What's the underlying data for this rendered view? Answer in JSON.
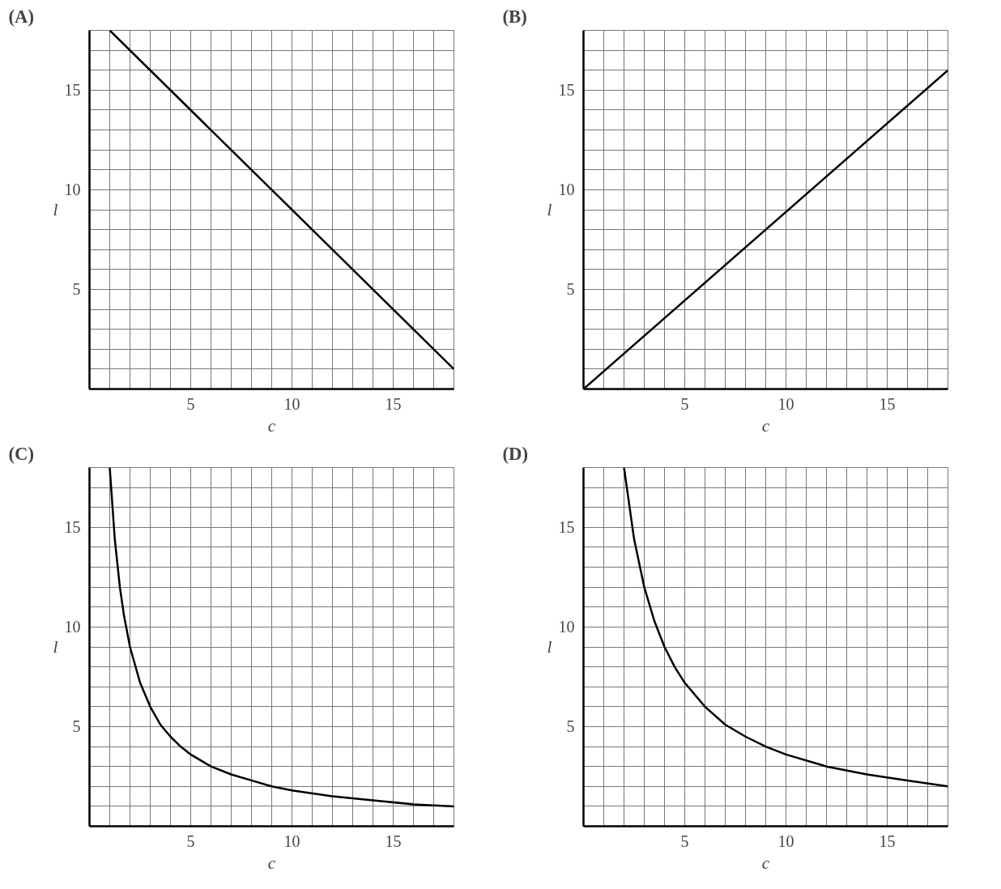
{
  "chart_data": [
    {
      "type": "line",
      "title": "(A)",
      "xlabel": "c",
      "ylabel": "l",
      "color": "#000000",
      "grid": true,
      "x": [
        1,
        18
      ],
      "values": [
        18,
        1
      ],
      "xlim": [
        0,
        18
      ],
      "ylim": [
        0,
        18
      ],
      "xticks": [
        {
          "value": 1,
          "label": null
        },
        {
          "value": 2,
          "label": null
        },
        {
          "value": 3,
          "label": null
        },
        {
          "value": 4,
          "label": null
        },
        5,
        {
          "value": 6,
          "label": null
        },
        {
          "value": 7,
          "label": null
        },
        {
          "value": 8,
          "label": null
        },
        {
          "value": 9,
          "label": null
        },
        10,
        {
          "value": 11,
          "label": null
        },
        {
          "value": 12,
          "label": null
        },
        {
          "value": 13,
          "label": null
        },
        {
          "value": 14,
          "label": null
        },
        15,
        {
          "value": 16,
          "label": null
        },
        {
          "value": 17,
          "label": null
        },
        {
          "value": 18,
          "label": null
        }
      ],
      "yticks": [
        {
          "value": 1,
          "label": null
        },
        {
          "value": 2,
          "label": null
        },
        {
          "value": 3,
          "label": null
        },
        {
          "value": 4,
          "label": null
        },
        5,
        {
          "value": 6,
          "label": null
        },
        {
          "value": 7,
          "label": null
        },
        {
          "value": 8,
          "label": null
        },
        {
          "value": 9,
          "label": null
        },
        10,
        {
          "value": 11,
          "label": null
        },
        {
          "value": 12,
          "label": null
        },
        {
          "value": 13,
          "label": null
        },
        {
          "value": 14,
          "label": null
        },
        15,
        {
          "value": 16,
          "label": null
        },
        {
          "value": 17,
          "label": null
        },
        {
          "value": 18,
          "label": null
        }
      ]
    },
    {
      "type": "line",
      "title": "(B)",
      "xlabel": "c",
      "ylabel": "l",
      "color": "#000000",
      "grid": true,
      "x": [
        0,
        18
      ],
      "values": [
        0,
        16
      ],
      "xlim": [
        0,
        18
      ],
      "ylim": [
        0,
        18
      ],
      "xticks": [
        {
          "value": 1,
          "label": null
        },
        {
          "value": 2,
          "label": null
        },
        {
          "value": 3,
          "label": null
        },
        {
          "value": 4,
          "label": null
        },
        5,
        {
          "value": 6,
          "label": null
        },
        {
          "value": 7,
          "label": null
        },
        {
          "value": 8,
          "label": null
        },
        {
          "value": 9,
          "label": null
        },
        10,
        {
          "value": 11,
          "label": null
        },
        {
          "value": 12,
          "label": null
        },
        {
          "value": 13,
          "label": null
        },
        {
          "value": 14,
          "label": null
        },
        15,
        {
          "value": 16,
          "label": null
        },
        {
          "value": 17,
          "label": null
        },
        {
          "value": 18,
          "label": null
        }
      ],
      "yticks": [
        {
          "value": 1,
          "label": null
        },
        {
          "value": 2,
          "label": null
        },
        {
          "value": 3,
          "label": null
        },
        {
          "value": 4,
          "label": null
        },
        5,
        {
          "value": 6,
          "label": null
        },
        {
          "value": 7,
          "label": null
        },
        {
          "value": 8,
          "label": null
        },
        {
          "value": 9,
          "label": null
        },
        10,
        {
          "value": 11,
          "label": null
        },
        {
          "value": 12,
          "label": null
        },
        {
          "value": 13,
          "label": null
        },
        {
          "value": 14,
          "label": null
        },
        15,
        {
          "value": 16,
          "label": null
        },
        {
          "value": 17,
          "label": null
        },
        {
          "value": 18,
          "label": null
        }
      ]
    },
    {
      "type": "line",
      "title": "(C)",
      "xlabel": "c",
      "ylabel": "l",
      "color": "#000000",
      "grid": true,
      "x": [
        1,
        1.25,
        1.5,
        1.7,
        2,
        2.5,
        3,
        3.5,
        4,
        4.5,
        5,
        6,
        7,
        8,
        9,
        10,
        12,
        14,
        16,
        18
      ],
      "values": [
        18,
        14.4,
        12,
        10.6,
        9,
        7.2,
        6,
        5.1,
        4.5,
        4,
        3.6,
        3,
        2.6,
        2.3,
        2,
        1.8,
        1.5,
        1.3,
        1.1,
        1
      ],
      "xlim": [
        0,
        18
      ],
      "ylim": [
        0,
        18
      ],
      "xticks": [
        {
          "value": 1,
          "label": null
        },
        {
          "value": 2,
          "label": null
        },
        {
          "value": 3,
          "label": null
        },
        {
          "value": 4,
          "label": null
        },
        5,
        {
          "value": 6,
          "label": null
        },
        {
          "value": 7,
          "label": null
        },
        {
          "value": 8,
          "label": null
        },
        {
          "value": 9,
          "label": null
        },
        10,
        {
          "value": 11,
          "label": null
        },
        {
          "value": 12,
          "label": null
        },
        {
          "value": 13,
          "label": null
        },
        {
          "value": 14,
          "label": null
        },
        15,
        {
          "value": 16,
          "label": null
        },
        {
          "value": 17,
          "label": null
        },
        {
          "value": 18,
          "label": null
        }
      ],
      "yticks": [
        {
          "value": 1,
          "label": null
        },
        {
          "value": 2,
          "label": null
        },
        {
          "value": 3,
          "label": null
        },
        {
          "value": 4,
          "label": null
        },
        5,
        {
          "value": 6,
          "label": null
        },
        {
          "value": 7,
          "label": null
        },
        {
          "value": 8,
          "label": null
        },
        {
          "value": 9,
          "label": null
        },
        10,
        {
          "value": 11,
          "label": null
        },
        {
          "value": 12,
          "label": null
        },
        {
          "value": 13,
          "label": null
        },
        {
          "value": 14,
          "label": null
        },
        15,
        {
          "value": 16,
          "label": null
        },
        {
          "value": 17,
          "label": null
        },
        {
          "value": 18,
          "label": null
        }
      ]
    },
    {
      "type": "line",
      "title": "(D)",
      "xlabel": "c",
      "ylabel": "l",
      "color": "#000000",
      "grid": true,
      "x": [
        2,
        2.5,
        3,
        3.5,
        4,
        4.5,
        5,
        6,
        7,
        8,
        9,
        10,
        12,
        14,
        16,
        18
      ],
      "values": [
        18,
        14.4,
        12,
        10.3,
        9,
        8,
        7.2,
        6,
        5.1,
        4.5,
        4,
        3.6,
        3,
        2.6,
        2.3,
        2
      ],
      "xlim": [
        0,
        18
      ],
      "ylim": [
        0,
        18
      ],
      "xticks": [
        {
          "value": 1,
          "label": null
        },
        {
          "value": 2,
          "label": null
        },
        {
          "value": 3,
          "label": null
        },
        {
          "value": 4,
          "label": null
        },
        5,
        {
          "value": 6,
          "label": null
        },
        {
          "value": 7,
          "label": null
        },
        {
          "value": 8,
          "label": null
        },
        {
          "value": 9,
          "label": null
        },
        10,
        {
          "value": 11,
          "label": null
        },
        {
          "value": 12,
          "label": null
        },
        {
          "value": 13,
          "label": null
        },
        {
          "value": 14,
          "label": null
        },
        15,
        {
          "value": 16,
          "label": null
        },
        {
          "value": 17,
          "label": null
        },
        {
          "value": 18,
          "label": null
        }
      ],
      "yticks": [
        {
          "value": 1,
          "label": null
        },
        {
          "value": 2,
          "label": null
        },
        {
          "value": 3,
          "label": null
        },
        {
          "value": 4,
          "label": null
        },
        5,
        {
          "value": 6,
          "label": null
        },
        {
          "value": 7,
          "label": null
        },
        {
          "value": 8,
          "label": null
        },
        {
          "value": 9,
          "label": null
        },
        10,
        {
          "value": 11,
          "label": null
        },
        {
          "value": 12,
          "label": null
        },
        {
          "value": 13,
          "label": null
        },
        {
          "value": 14,
          "label": null
        },
        15,
        {
          "value": 16,
          "label": null
        },
        {
          "value": 17,
          "label": null
        },
        {
          "value": 18,
          "label": null
        }
      ]
    }
  ]
}
